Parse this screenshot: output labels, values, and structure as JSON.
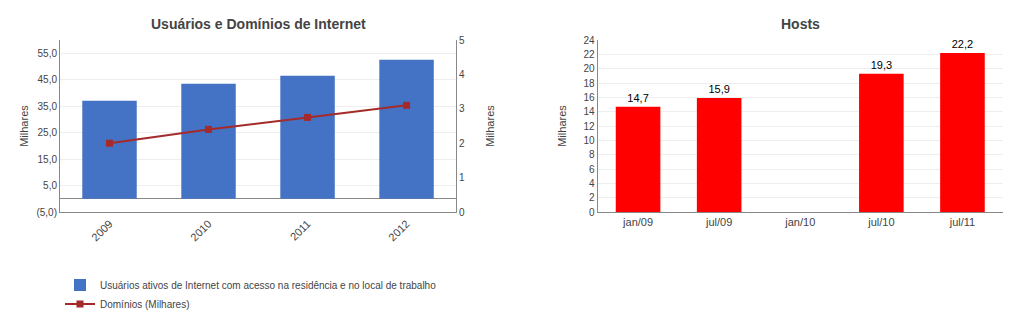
{
  "chart_data": [
    {
      "type": "bar",
      "title": "Usuários e Domínios de Internet",
      "ylabel": "Milhares",
      "y2label": "Milhares",
      "categories": [
        "2009",
        "2010",
        "2011",
        "2012"
      ],
      "ylim": [
        -5,
        60
      ],
      "yticks": [
        {
          "value": -5.0,
          "label": "(5,0)"
        },
        {
          "value": 5.0,
          "label": "5,0"
        },
        {
          "value": 15.0,
          "label": "15,0"
        },
        {
          "value": 25.0,
          "label": "25,0"
        },
        {
          "value": 35.0,
          "label": "35,0"
        },
        {
          "value": 45.0,
          "label": "45,0"
        },
        {
          "value": 55.0,
          "label": "55,0"
        }
      ],
      "y2lim": [
        0,
        5
      ],
      "y2ticks": [
        0,
        1,
        2,
        3,
        4,
        5
      ],
      "grid": true,
      "legend": "bottom",
      "series": [
        {
          "name": "Usuários ativos de Internet com acesso na residência e no local de trabalho",
          "type": "bar",
          "color": "#4472C4",
          "values": [
            37.0,
            43.5,
            46.5,
            52.5
          ]
        },
        {
          "name": "Domínios (Milhares)",
          "type": "line",
          "axis": "y2",
          "color": "#A52A2A",
          "marker": "square",
          "values": [
            2.0,
            2.4,
            2.75,
            3.1
          ]
        }
      ]
    },
    {
      "type": "bar",
      "title": "Hosts",
      "ylabel": "Milhares",
      "categories": [
        "jan/09",
        "jul/09",
        "jan/10",
        "jul/10",
        "jul/11"
      ],
      "values": [
        14.7,
        15.9,
        0,
        19.3,
        22.2
      ],
      "value_labels": [
        "14,7",
        "15,9",
        null,
        "19,3",
        "22,2"
      ],
      "data_labels": true,
      "color": "#FF0000",
      "ylim": [
        0,
        24
      ],
      "yticks": [
        0,
        2,
        4,
        6,
        8,
        10,
        12,
        14,
        16,
        18,
        20,
        22,
        24
      ],
      "grid": true
    }
  ]
}
